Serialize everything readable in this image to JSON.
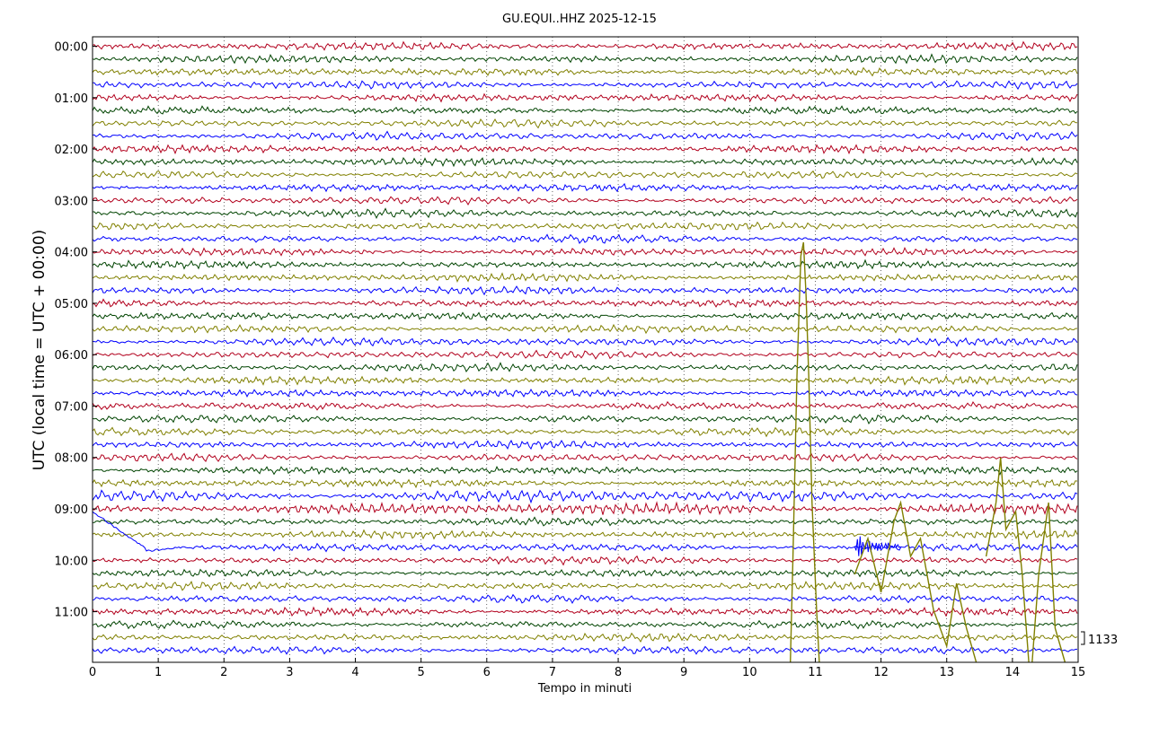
{
  "chart_data": {
    "type": "line",
    "title": "GU.EQUI..HHZ 2025-12-15",
    "xlabel": "Tempo in minuti",
    "ylabel": "UTC (local time = UTC + 00:00)",
    "xlim": [
      0,
      15
    ],
    "x_ticks": [
      "0",
      "1",
      "2",
      "3",
      "4",
      "5",
      "6",
      "7",
      "8",
      "9",
      "10",
      "11",
      "12",
      "13",
      "14",
      "15"
    ],
    "y_ticks": [
      "00:00",
      "01:00",
      "02:00",
      "03:00",
      "04:00",
      "05:00",
      "06:00",
      "07:00",
      "08:00",
      "09:00",
      "10:00",
      "11:00"
    ],
    "rows_per_hour": 4,
    "row_count": 48,
    "trace_colors": [
      "#b2001d",
      "#004400",
      "#808000",
      "#0000ff"
    ],
    "grid": "dotted vertical at each minute",
    "scale_label": "1133",
    "events": [
      {
        "start_row": 15,
        "minute": 10.75,
        "description": "large excursion spanning many rows"
      },
      {
        "start_row": 35,
        "minute": 11.7,
        "description": "burst"
      },
      {
        "start_row": 36,
        "minute": 12.3,
        "description": "wandering trace"
      },
      {
        "start_row": 32,
        "minute": 13.8,
        "description": "large excursions"
      },
      {
        "start_row": 39,
        "minute": 0.1,
        "description": "drifting trace"
      }
    ]
  }
}
